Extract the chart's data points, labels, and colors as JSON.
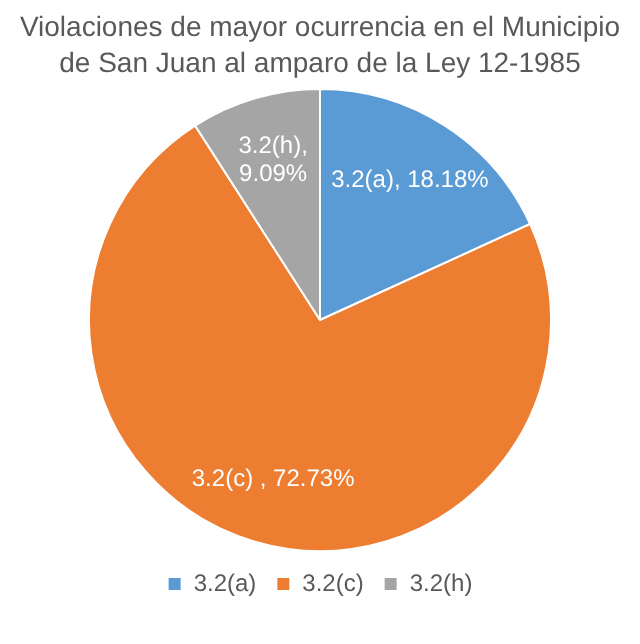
{
  "chart_data": {
    "type": "pie",
    "title": "Violaciones de mayor ocurrencia en el Municipio de San Juan al amparo de la Ley 12-1985",
    "categories": [
      "3.2(a)",
      "3.2(c)",
      "3.2(h)"
    ],
    "values": [
      18.18,
      72.73,
      9.09
    ],
    "colors": [
      "#5b9bd5",
      "#ed7d31",
      "#a5a5a5"
    ],
    "value_labels": [
      "3.2(a), 18.18%",
      "3.2(c) , 72.73%",
      "3.2(h), 9.09%"
    ],
    "legend": "bottom"
  }
}
